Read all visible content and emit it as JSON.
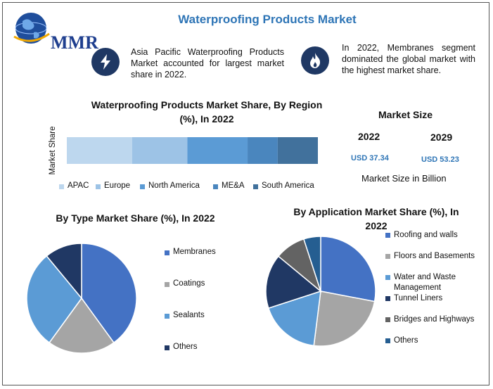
{
  "header": {
    "title": "Waterproofing Products Market",
    "logo_text": "MMR"
  },
  "facts": [
    {
      "icon": "lightning-icon",
      "text": "Asia Pacific Waterproofing Products Market accounted for largest market share in 2022."
    },
    {
      "icon": "flame-icon",
      "text": "In 2022, Membranes segment dominated the global market with the highest market share."
    }
  ],
  "region_chart": {
    "title": "Waterproofing Products Market Share, By Region (%), In 2022",
    "axis_label": "Market Share"
  },
  "market_size": {
    "title": "Market Size",
    "year_a": "2022",
    "year_b": "2029",
    "value_a": "USD 37.34",
    "value_b": "USD 53.23",
    "unit_note": "Market Size in Billion"
  },
  "type_chart": {
    "title": "By Type Market Share (%), In 2022"
  },
  "application_chart": {
    "title": "By Application Market Share (%), In 2022"
  },
  "chart_data": [
    {
      "type": "bar",
      "orientation": "horizontal-stacked",
      "title": "Waterproofing Products Market Share, By Region (%), In 2022",
      "ylabel": "Market Share",
      "legend_position": "bottom",
      "series": [
        {
          "name": "APAC",
          "value": 26,
          "color": "#bdd7ee"
        },
        {
          "name": "Europe",
          "value": 22,
          "color": "#9dc3e6"
        },
        {
          "name": "North America",
          "value": 24,
          "color": "#5b9bd5"
        },
        {
          "name": "ME&A",
          "value": 12,
          "color": "#4a86be"
        },
        {
          "name": "South America",
          "value": 16,
          "color": "#41719c"
        }
      ]
    },
    {
      "type": "pie",
      "title": "By Type Market Share (%), In 2022",
      "legend_position": "right",
      "slices": [
        {
          "name": "Membranes",
          "value": 40,
          "color": "#4472c4"
        },
        {
          "name": "Coatings",
          "value": 20,
          "color": "#a5a5a5"
        },
        {
          "name": "Sealants",
          "value": 29,
          "color": "#5b9bd5"
        },
        {
          "name": "Others",
          "value": 11,
          "color": "#203864"
        }
      ]
    },
    {
      "type": "pie",
      "title": "By Application Market Share (%), In 2022",
      "legend_position": "right",
      "slices": [
        {
          "name": "Roofing and walls",
          "value": 28,
          "color": "#4472c4"
        },
        {
          "name": "Floors and Basements",
          "value": 24,
          "color": "#a5a5a5"
        },
        {
          "name": "Water and Waste Management",
          "value": 18,
          "color": "#5b9bd5"
        },
        {
          "name": "Tunnel Liners",
          "value": 16,
          "color": "#203864"
        },
        {
          "name": "Bridges and Highways",
          "value": 9,
          "color": "#636363"
        },
        {
          "name": "Others",
          "value": 5,
          "color": "#255e91"
        }
      ]
    }
  ]
}
